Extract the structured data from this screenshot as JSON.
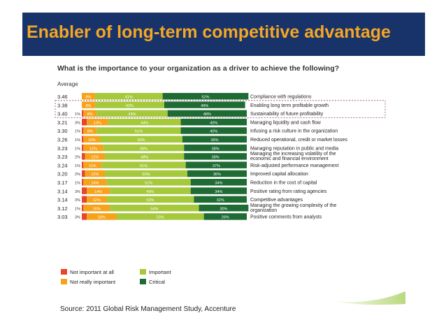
{
  "slide": {
    "title": "Enabler of long-term competitive advantage",
    "source": "Source: 2011 Global Risk Management Study, Accenture"
  },
  "colors": {
    "banner": "#18336a",
    "title": "#f5a623",
    "not_important": "#e8452c",
    "not_really_important": "#f7a21b",
    "important": "#a5c93b",
    "critical": "#1f6b34"
  },
  "chart_data": {
    "type": "bar",
    "stacked": true,
    "orientation": "horizontal",
    "title": "What is the importance to your organization as a driver to achieve the following?",
    "average_label": "Average",
    "categories": [
      "Compliance with regulations",
      "Enabling long term profitable growth",
      "Sustainability of future profitability",
      "Managing liquidity and cash flow",
      "Infusing a risk culture in the organization",
      "Reduced operational, credit or market losses",
      "Managing reputation in public and media",
      "Managing the increasing volatility of the economic and financial environment",
      "Risk-adjusted performance management",
      "Improved capital allocation",
      "Reduction in the cost of capital",
      "Positive rating from rating agencies",
      "Competitive advantages",
      "Managing the growing complexity of the organization",
      "Positive comments from analysts"
    ],
    "averages": [
      "3.46",
      "3.38",
      "3.40",
      "3.21",
      "3.30",
      "3.26",
      "3.23",
      "3.23",
      "3.24",
      "3.20",
      "3.17",
      "3.14",
      "3.14",
      "3.12",
      "3.03"
    ],
    "series": [
      {
        "name": "Not important at all",
        "values": [
          null,
          null,
          1,
          3,
          1,
          1,
          1,
          2,
          1,
          2,
          1,
          3,
          3,
          1,
          3
        ]
      },
      {
        "name": "Not really important",
        "values": [
          8,
          8,
          8,
          13,
          8,
          10,
          12,
          12,
          11,
          12,
          14,
          14,
          12,
          16,
          18
        ]
      },
      {
        "name": "Important",
        "values": [
          41,
          42,
          43,
          44,
          51,
          50,
          49,
          48,
          51,
          50,
          51,
          49,
          53,
          54,
          53
        ]
      },
      {
        "name": "Critical",
        "values": [
          52,
          49,
          48,
          40,
          40,
          39,
          38,
          38,
          37,
          36,
          34,
          34,
          32,
          30,
          26
        ]
      }
    ],
    "highlighted_rows": [
      1,
      2
    ],
    "legend": [
      "Not important at all",
      "Not really important",
      "Important",
      "Critical"
    ],
    "legend_position": "bottom-left"
  }
}
